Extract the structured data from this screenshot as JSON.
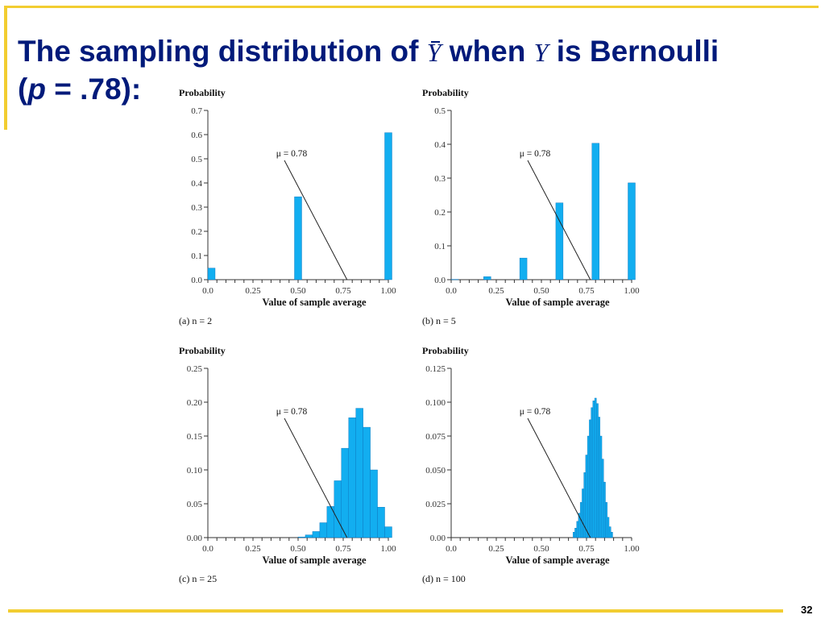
{
  "title": {
    "part1": "The sampling distribution of",
    "ybar": "Y",
    "part2": "when",
    "y": "Y",
    "part3": "is Bernoulli",
    "line2_open": "(",
    "line2_p": "p",
    "line2_rest": " = .78):"
  },
  "page_number": "32",
  "colors": {
    "title": "#001a7a",
    "accent": "#f2cd31",
    "bar": "#12aef0",
    "bar_edge": "#0a6fb8"
  },
  "chart_data": [
    {
      "type": "bar",
      "caption": "(a) n = 2",
      "ylabel": "Probability",
      "xlabel": "Value of sample average",
      "ylim": [
        0,
        0.7
      ],
      "yticks": [
        "0.0",
        "0.1",
        "0.2",
        "0.3",
        "0.4",
        "0.5",
        "0.6",
        "0.7"
      ],
      "xticks": [
        "0.0",
        "0.25",
        "0.50",
        "0.75",
        "1.00"
      ],
      "annotation": "μ = 0.78",
      "mu": 0.78,
      "x": [
        0.0,
        0.5,
        1.0
      ],
      "values": [
        0.048,
        0.343,
        0.608
      ]
    },
    {
      "type": "bar",
      "caption": "(b) n = 5",
      "ylabel": "Probability",
      "xlabel": "Value of sample average",
      "ylim": [
        0,
        0.5
      ],
      "yticks": [
        "0.0",
        "0.1",
        "0.2",
        "0.3",
        "0.4",
        "0.5"
      ],
      "xticks": [
        "0.0",
        "0.25",
        "0.50",
        "0.75",
        "1.00"
      ],
      "annotation": "μ = 0.78",
      "mu": 0.78,
      "x": [
        0.0,
        0.2,
        0.4,
        0.6,
        0.8,
        1.0
      ],
      "values": [
        0.001,
        0.009,
        0.064,
        0.227,
        0.403,
        0.286
      ]
    },
    {
      "type": "bar",
      "caption": "(c) n = 25",
      "ylabel": "Probability",
      "xlabel": "Value of sample average",
      "ylim": [
        0,
        0.25
      ],
      "yticks": [
        "0.00",
        "0.05",
        "0.10",
        "0.15",
        "0.20",
        "0.25"
      ],
      "xticks": [
        "0.0",
        "0.25",
        "0.50",
        "0.75",
        "1.00"
      ],
      "annotation": "μ = 0.78",
      "mu": 0.78,
      "x": [
        0.52,
        0.56,
        0.6,
        0.64,
        0.68,
        0.72,
        0.76,
        0.8,
        0.84,
        0.88,
        0.92,
        0.96,
        1.0
      ],
      "values": [
        0.001,
        0.004,
        0.009,
        0.022,
        0.046,
        0.084,
        0.132,
        0.177,
        0.191,
        0.163,
        0.1,
        0.045,
        0.016
      ]
    },
    {
      "type": "bar",
      "caption": "(d) n = 100",
      "ylabel": "Probability",
      "xlabel": "Value of sample average",
      "ylim": [
        0,
        0.125
      ],
      "yticks": [
        "0.00",
        "0.025",
        "0.050",
        "0.075",
        "0.100",
        "0.125"
      ],
      "xticks": [
        "0.0",
        "0.25",
        "0.50",
        "0.75",
        "1.00"
      ],
      "annotation": "μ = 0.78",
      "mu": 0.78,
      "x": [
        0.68,
        0.69,
        0.7,
        0.71,
        0.72,
        0.73,
        0.74,
        0.75,
        0.76,
        0.77,
        0.78,
        0.79,
        0.8,
        0.81,
        0.82,
        0.83,
        0.84,
        0.85,
        0.86,
        0.87,
        0.88,
        0.89
      ],
      "values": [
        0.004,
        0.007,
        0.012,
        0.018,
        0.026,
        0.036,
        0.048,
        0.061,
        0.075,
        0.087,
        0.096,
        0.101,
        0.103,
        0.099,
        0.089,
        0.075,
        0.058,
        0.041,
        0.026,
        0.015,
        0.008,
        0.004
      ]
    }
  ]
}
